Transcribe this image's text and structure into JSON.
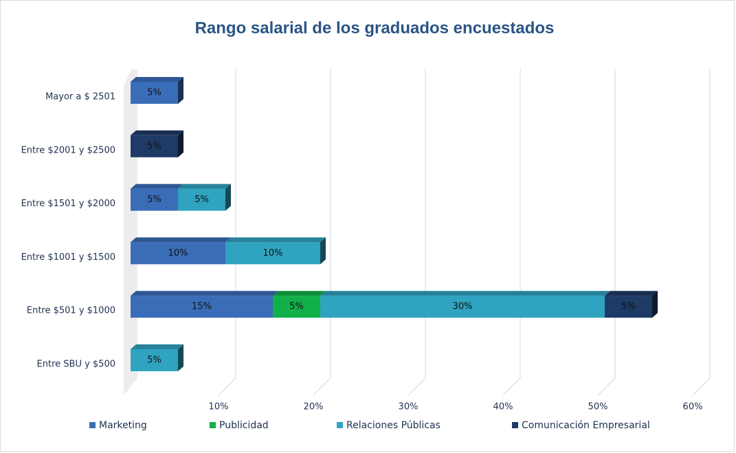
{
  "chart_data": {
    "type": "bar",
    "orientation": "horizontal",
    "stacked": true,
    "title": "Rango salarial de los graduados encuestados",
    "categories": [
      "Mayor a $ 2501",
      "Entre $2001 y $2500",
      "Entre $1501 y $2000",
      "Entre $1001 y $1500",
      "Entre $501 y $1000",
      "Entre SBU y $500"
    ],
    "series": [
      {
        "name": "Marketing",
        "color": "#3a6db8",
        "values": [
          5,
          null,
          5,
          10,
          15,
          null
        ],
        "value_labels": [
          "5%",
          null,
          "5%",
          "10%",
          "15%",
          null
        ]
      },
      {
        "name": "Publicidad",
        "color": "#12b04a",
        "values": [
          null,
          null,
          null,
          null,
          5,
          null
        ],
        "value_labels": [
          null,
          null,
          null,
          null,
          "5%",
          null
        ]
      },
      {
        "name": "Relaciones Públicas",
        "color": "#2fa3bf",
        "values": [
          null,
          null,
          5,
          10,
          30,
          5
        ],
        "value_labels": [
          null,
          null,
          "5%",
          "10%",
          "30%",
          "5%"
        ]
      },
      {
        "name": "Comunicación Empresarial",
        "color": "#1e3a66",
        "values": [
          null,
          5,
          null,
          null,
          5,
          null
        ],
        "value_labels": [
          null,
          "5%",
          null,
          null,
          "5%",
          null
        ]
      }
    ],
    "xlim": [
      0,
      60
    ],
    "xticks": [
      {
        "value": 10,
        "label": "10%"
      },
      {
        "value": 20,
        "label": "20%"
      },
      {
        "value": 30,
        "label": "30%"
      },
      {
        "value": 40,
        "label": "40%"
      },
      {
        "value": 50,
        "label": "50%"
      },
      {
        "value": 60,
        "label": "60%"
      }
    ],
    "grid": true,
    "legend": "bottom"
  }
}
